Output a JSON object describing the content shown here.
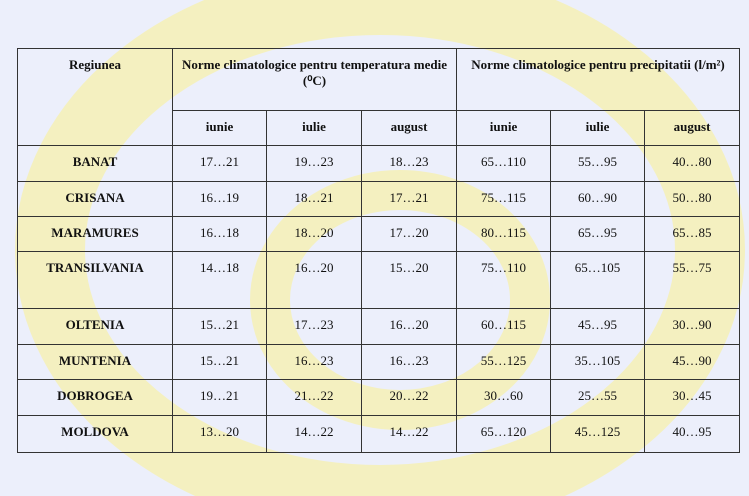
{
  "table": {
    "header": {
      "region": "Regiunea",
      "temperature": "Norme climatologice pentru temperatura medie (⁰C)",
      "precipitation": "Norme climatologice pentru precipitatii (l/m²)",
      "months": [
        "iunie",
        "iulie",
        "august",
        "iunie",
        "iulie",
        "august"
      ]
    },
    "rows": [
      [
        "BANAT",
        "17…21",
        "19…23",
        "18…23",
        "65…110",
        "55…95",
        "40…80"
      ],
      [
        "CRISANA",
        "16…19",
        "18…21",
        "17…21",
        "75…115",
        "60…90",
        "50…80"
      ],
      [
        "MARAMURES",
        "16…18",
        "18…20",
        "17…20",
        "80…115",
        "65…95",
        "65…85"
      ],
      [
        "TRANSILVANIA",
        "14…18",
        "16…20",
        "15…20",
        "75…110",
        "65…105",
        "55…75"
      ],
      [
        "OLTENIA",
        "15…21",
        "17…23",
        "16…20",
        "60…115",
        "45…95",
        "30…90"
      ],
      [
        "MUNTENIA",
        "15…21",
        "16…23",
        "16…23",
        "55…125",
        "35…105",
        "45…90"
      ],
      [
        "DOBROGEA",
        "19…21",
        "21…22",
        "20…22",
        "30…60",
        "25…55",
        "30…45"
      ],
      [
        "MOLDOVA",
        "13…20",
        "14…22",
        "14…22",
        "65…120",
        "45…125",
        "40…95"
      ]
    ]
  }
}
